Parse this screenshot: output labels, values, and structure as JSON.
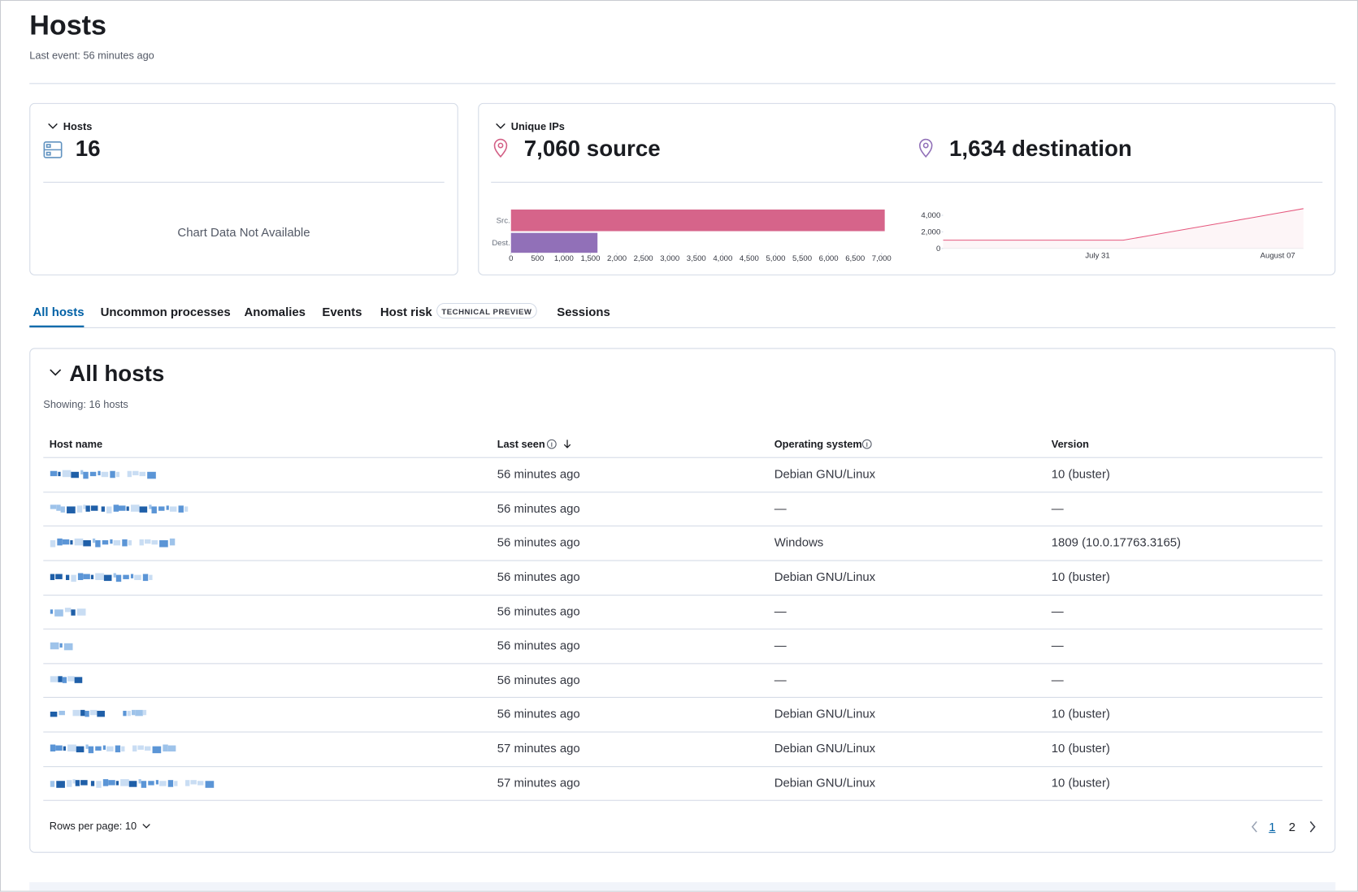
{
  "header": {
    "title": "Hosts",
    "subtitle": "Last event: 56 minutes ago"
  },
  "kpis": {
    "hosts": {
      "title": "Hosts",
      "value": "16",
      "empty_chart": "Chart Data Not Available"
    },
    "unique_ips": {
      "title": "Unique IPs",
      "source": "7,060 source",
      "destination": "1,634 destination"
    }
  },
  "chart_data": [
    {
      "type": "bar",
      "orientation": "horizontal",
      "categories": [
        "Src.",
        "Dest."
      ],
      "values": [
        7060,
        1634
      ],
      "colors": [
        "#d6648a",
        "#9170b8"
      ],
      "xlim": [
        0,
        7100
      ],
      "xticks": [
        0,
        500,
        {
          "value": 1000,
          "label": "1,000"
        },
        {
          "value": 1500,
          "label": "1,500"
        },
        {
          "value": 2000,
          "label": "2,000"
        },
        {
          "value": 2500,
          "label": "2,500"
        },
        {
          "value": 3000,
          "label": "3,000"
        },
        {
          "value": 3500,
          "label": "3,500"
        },
        {
          "value": 4000,
          "label": "4,000"
        },
        {
          "value": 4500,
          "label": "4,500"
        },
        {
          "value": 5000,
          "label": "5,000"
        },
        {
          "value": 5500,
          "label": "5,500"
        },
        {
          "value": 6000,
          "label": "6,000"
        },
        {
          "value": 6500,
          "label": "6,500"
        },
        {
          "value": 7000,
          "label": "7,000"
        }
      ]
    },
    {
      "type": "line",
      "categories": [
        null,
        null,
        null,
        null,
        null,
        null,
        "July 31",
        null,
        null,
        null,
        null,
        null,
        null,
        "August 07",
        null
      ],
      "values": [
        1000,
        1000,
        1000,
        1000,
        1000,
        1000,
        1000,
        1000,
        1540,
        2090,
        2630,
        3170,
        3710,
        4260,
        4800
      ],
      "color": "#e5577d",
      "area": true,
      "ylim": [
        0,
        4800
      ],
      "yticks": [
        0,
        {
          "value": 2000,
          "label": "2,000"
        },
        {
          "value": 4000,
          "label": "4,000"
        }
      ]
    }
  ],
  "tabs": [
    {
      "label": "All hosts",
      "active": true
    },
    {
      "label": "Uncommon processes"
    },
    {
      "label": "Anomalies"
    },
    {
      "label": "Events"
    },
    {
      "label": "Host risk",
      "badge": "TECHNICAL PREVIEW"
    },
    {
      "label": "Sessions"
    }
  ],
  "table": {
    "title": "All hosts",
    "showing": "Showing: 16 hosts",
    "columns": [
      "Host name",
      "Last seen",
      "Operating system",
      "Version"
    ],
    "rows": [
      {
        "last_seen": "56 minutes ago",
        "os": "Debian GNU/Linux",
        "version": "10 (buster)"
      },
      {
        "last_seen": "56 minutes ago",
        "os": "—",
        "version": "—"
      },
      {
        "last_seen": "56 minutes ago",
        "os": "Windows",
        "version": "1809 (10.0.17763.3165)"
      },
      {
        "last_seen": "56 minutes ago",
        "os": "Debian GNU/Linux",
        "version": "10 (buster)"
      },
      {
        "last_seen": "56 minutes ago",
        "os": "—",
        "version": "—"
      },
      {
        "last_seen": "56 minutes ago",
        "os": "—",
        "version": "—"
      },
      {
        "last_seen": "56 minutes ago",
        "os": "—",
        "version": "—"
      },
      {
        "last_seen": "56 minutes ago",
        "os": "Debian GNU/Linux",
        "version": "10 (buster)"
      },
      {
        "last_seen": "57 minutes ago",
        "os": "Debian GNU/Linux",
        "version": "10 (buster)"
      },
      {
        "last_seen": "57 minutes ago",
        "os": "Debian GNU/Linux",
        "version": "10 (buster)"
      }
    ],
    "rows_per_page": "Rows per page: 10",
    "pages": [
      1,
      2
    ]
  }
}
